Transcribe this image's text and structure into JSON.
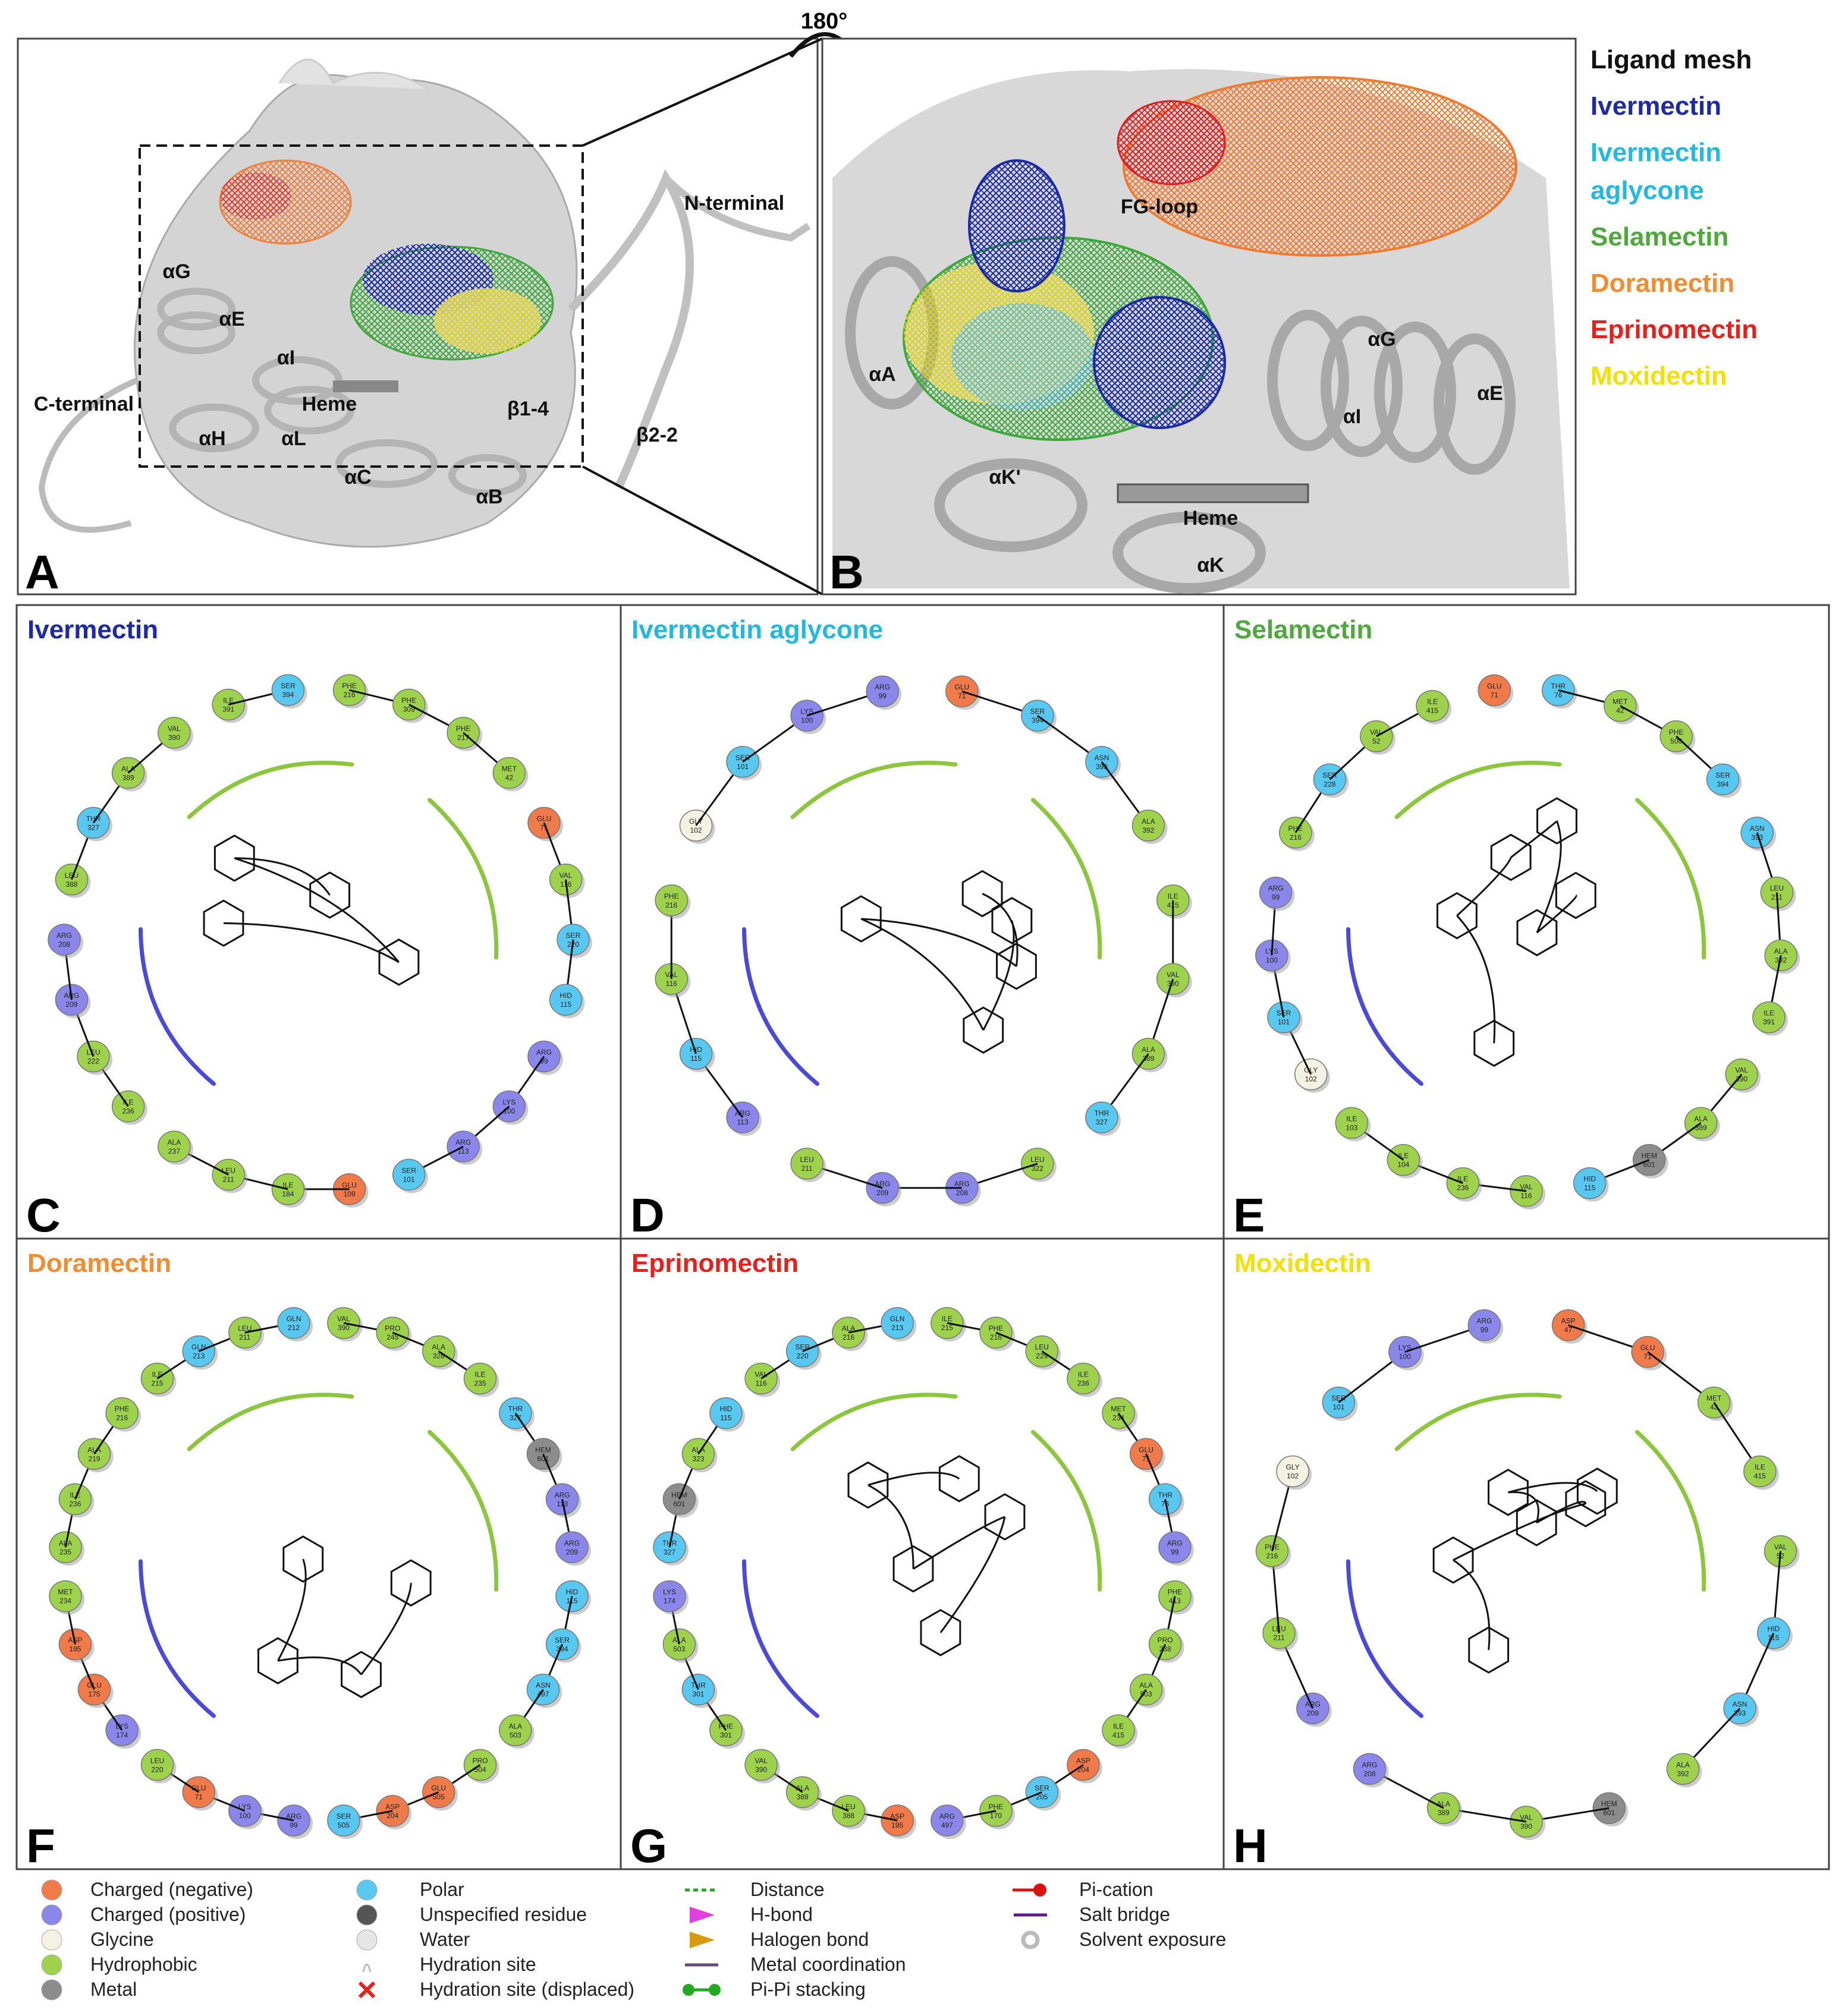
{
  "rotation_label": "180°",
  "panel_a": {
    "label": "A",
    "annotations": [
      "N-terminal",
      "αG",
      "αE",
      "αI",
      "C-terminal",
      "Heme",
      "β1-4",
      "αH",
      "αL",
      "αC",
      "αB",
      "β2-2"
    ]
  },
  "panel_b": {
    "label": "B",
    "annotations": [
      "FG-loop",
      "αA",
      "αG",
      "αE",
      "αI",
      "αK'",
      "Heme",
      "αK"
    ]
  },
  "ligand_legend": {
    "title": "Ligand mesh",
    "items": [
      {
        "name": "Ivermectin",
        "color": "#1c2aa8"
      },
      {
        "name": "Ivermectin aglycone",
        "color": "#22b8e0"
      },
      {
        "name": "Selamectin",
        "color": "#4ea83c"
      },
      {
        "name": "Doramectin",
        "color": "#f28c30"
      },
      {
        "name": "Eprinomectin",
        "color": "#e8201c"
      },
      {
        "name": "Moxidectin",
        "color": "#f2e000"
      }
    ]
  },
  "residue_colors": {
    "neg": "#f07a4a",
    "pos": "#8a86ea",
    "gly": "#f4f2e2",
    "hyd": "#9fd24c",
    "metal": "#8c8c8c",
    "polar": "#58c8f0",
    "unspec": "#555555",
    "water": "#e6e6e6"
  },
  "panels": [
    {
      "label": "C",
      "title": "Ivermectin",
      "color": "#1c2aa8",
      "residues": [
        {
          "r": "PHE",
          "n": 216,
          "k": "hyd"
        },
        {
          "r": "PHE",
          "n": 309,
          "k": "hyd"
        },
        {
          "r": "PHE",
          "n": 217,
          "k": "hyd"
        },
        {
          "r": "MET",
          "n": 42,
          "k": "hyd"
        },
        {
          "r": "GLU",
          "n": 71,
          "k": "neg"
        },
        {
          "r": "VAL",
          "n": 116,
          "k": "hyd"
        },
        {
          "r": "SER",
          "n": 220,
          "k": "polar"
        },
        {
          "r": "HID",
          "n": 115,
          "k": "polar"
        },
        {
          "r": "ARG",
          "n": 99,
          "k": "pos"
        },
        {
          "r": "LYS",
          "n": 100,
          "k": "pos"
        },
        {
          "r": "ARG",
          "n": 113,
          "k": "pos"
        },
        {
          "r": "SER",
          "n": 101,
          "k": "polar"
        },
        {
          "r": "GLU",
          "n": 109,
          "k": "neg"
        },
        {
          "r": "ILE",
          "n": 184,
          "k": "hyd"
        },
        {
          "r": "LEU",
          "n": 211,
          "k": "hyd"
        },
        {
          "r": "ALA",
          "n": 237,
          "k": "hyd"
        },
        {
          "r": "ILE",
          "n": 236,
          "k": "hyd"
        },
        {
          "r": "LEU",
          "n": 222,
          "k": "hyd"
        },
        {
          "r": "ARG",
          "n": 209,
          "k": "pos"
        },
        {
          "r": "ARG",
          "n": 208,
          "k": "pos"
        },
        {
          "r": "LEU",
          "n": 388,
          "k": "hyd"
        },
        {
          "r": "THR",
          "n": 327,
          "k": "polar"
        },
        {
          "r": "ALA",
          "n": 389,
          "k": "hyd"
        },
        {
          "r": "VAL",
          "n": 390,
          "k": "hyd"
        },
        {
          "r": "ILE",
          "n": 391,
          "k": "hyd"
        },
        {
          "r": "SER",
          "n": 394,
          "k": "polar"
        }
      ]
    },
    {
      "label": "D",
      "title": "Ivermectin aglycone",
      "color": "#22b8e0",
      "residues": [
        {
          "r": "GLU",
          "n": 71,
          "k": "neg"
        },
        {
          "r": "SER",
          "n": 394,
          "k": "polar"
        },
        {
          "r": "ASN",
          "n": 393,
          "k": "polar"
        },
        {
          "r": "ALA",
          "n": 392,
          "k": "hyd"
        },
        {
          "r": "ILE",
          "n": 415,
          "k": "hyd"
        },
        {
          "r": "VAL",
          "n": 390,
          "k": "hyd"
        },
        {
          "r": "ALA",
          "n": 389,
          "k": "hyd"
        },
        {
          "r": "THR",
          "n": 327,
          "k": "polar"
        },
        {
          "r": "LEU",
          "n": 322,
          "k": "hyd"
        },
        {
          "r": "ARG",
          "n": 208,
          "k": "pos"
        },
        {
          "r": "ARG",
          "n": 209,
          "k": "pos"
        },
        {
          "r": "LEU",
          "n": 211,
          "k": "hyd"
        },
        {
          "r": "ARG",
          "n": 113,
          "k": "pos"
        },
        {
          "r": "HID",
          "n": 115,
          "k": "polar"
        },
        {
          "r": "VAL",
          "n": 116,
          "k": "hyd"
        },
        {
          "r": "PHE",
          "n": 216,
          "k": "hyd"
        },
        {
          "r": "GLY",
          "n": 102,
          "k": "gly"
        },
        {
          "r": "SER",
          "n": 101,
          "k": "polar"
        },
        {
          "r": "LYS",
          "n": 100,
          "k": "pos"
        },
        {
          "r": "ARG",
          "n": 99,
          "k": "pos"
        }
      ]
    },
    {
      "label": "E",
      "title": "Selamectin",
      "color": "#4ea83c",
      "residues": [
        {
          "r": "THR",
          "n": 76,
          "k": "polar"
        },
        {
          "r": "MET",
          "n": 42,
          "k": "hyd"
        },
        {
          "r": "PHE",
          "n": 500,
          "k": "hyd"
        },
        {
          "r": "SER",
          "n": 394,
          "k": "polar"
        },
        {
          "r": "ASN",
          "n": 393,
          "k": "polar"
        },
        {
          "r": "LEU",
          "n": 211,
          "k": "hyd"
        },
        {
          "r": "ALA",
          "n": 392,
          "k": "hyd"
        },
        {
          "r": "ILE",
          "n": 391,
          "k": "hyd"
        },
        {
          "r": "VAL",
          "n": 390,
          "k": "hyd"
        },
        {
          "r": "ALA",
          "n": 389,
          "k": "hyd"
        },
        {
          "r": "HEM",
          "n": 601,
          "k": "metal"
        },
        {
          "r": "HID",
          "n": 115,
          "k": "polar"
        },
        {
          "r": "VAL",
          "n": 116,
          "k": "hyd"
        },
        {
          "r": "ILE",
          "n": 236,
          "k": "hyd"
        },
        {
          "r": "ILE",
          "n": 104,
          "k": "hyd"
        },
        {
          "r": "ILE",
          "n": 103,
          "k": "hyd"
        },
        {
          "r": "GLY",
          "n": 102,
          "k": "gly"
        },
        {
          "r": "SER",
          "n": 101,
          "k": "polar"
        },
        {
          "r": "LYS",
          "n": 100,
          "k": "pos"
        },
        {
          "r": "ARG",
          "n": 99,
          "k": "pos"
        },
        {
          "r": "PHE",
          "n": 216,
          "k": "hyd"
        },
        {
          "r": "SER",
          "n": 228,
          "k": "polar"
        },
        {
          "r": "VAL",
          "n": 52,
          "k": "hyd"
        },
        {
          "r": "ILE",
          "n": 415,
          "k": "hyd"
        },
        {
          "r": "GLU",
          "n": 71,
          "k": "neg"
        }
      ]
    },
    {
      "label": "F",
      "title": "Doramectin",
      "color": "#f28c30",
      "residues": [
        {
          "r": "VAL",
          "n": 390,
          "k": "hyd"
        },
        {
          "r": "PRO",
          "n": 245,
          "k": "hyd"
        },
        {
          "r": "ALA",
          "n": 328,
          "k": "hyd"
        },
        {
          "r": "ILE",
          "n": 235,
          "k": "hyd"
        },
        {
          "r": "THR",
          "n": 327,
          "k": "polar"
        },
        {
          "r": "HEM",
          "n": 601,
          "k": "metal"
        },
        {
          "r": "ARG",
          "n": 113,
          "k": "pos"
        },
        {
          "r": "ARG",
          "n": 209,
          "k": "pos"
        },
        {
          "r": "HID",
          "n": 115,
          "k": "polar"
        },
        {
          "r": "SER",
          "n": 394,
          "k": "polar"
        },
        {
          "r": "ASN",
          "n": 497,
          "k": "polar"
        },
        {
          "r": "ALA",
          "n": 503,
          "k": "hyd"
        },
        {
          "r": "PRO",
          "n": 504,
          "k": "hyd"
        },
        {
          "r": "GLU",
          "n": 505,
          "k": "neg"
        },
        {
          "r": "ASP",
          "n": 204,
          "k": "neg"
        },
        {
          "r": "SER",
          "n": 505,
          "k": "polar"
        },
        {
          "r": "ARG",
          "n": 99,
          "k": "pos"
        },
        {
          "r": "LYS",
          "n": 100,
          "k": "pos"
        },
        {
          "r": "GLU",
          "n": 71,
          "k": "neg"
        },
        {
          "r": "LEU",
          "n": 220,
          "k": "hyd"
        },
        {
          "r": "LYS",
          "n": 174,
          "k": "pos"
        },
        {
          "r": "GLU",
          "n": 175,
          "k": "neg"
        },
        {
          "r": "ASP",
          "n": 195,
          "k": "neg"
        },
        {
          "r": "MET",
          "n": 234,
          "k": "hyd"
        },
        {
          "r": "ALA",
          "n": 235,
          "k": "hyd"
        },
        {
          "r": "ILE",
          "n": 236,
          "k": "hyd"
        },
        {
          "r": "ALA",
          "n": 219,
          "k": "hyd"
        },
        {
          "r": "PHE",
          "n": 216,
          "k": "hyd"
        },
        {
          "r": "ILE",
          "n": 215,
          "k": "hyd"
        },
        {
          "r": "GLN",
          "n": 213,
          "k": "polar"
        },
        {
          "r": "LEU",
          "n": 211,
          "k": "hyd"
        },
        {
          "r": "GLN",
          "n": 212,
          "k": "polar"
        }
      ]
    },
    {
      "label": "G",
      "title": "Eprinomectin",
      "color": "#e8201c",
      "residues": [
        {
          "r": "ILE",
          "n": 215,
          "k": "hyd"
        },
        {
          "r": "PHE",
          "n": 216,
          "k": "hyd"
        },
        {
          "r": "LEU",
          "n": 229,
          "k": "hyd"
        },
        {
          "r": "ILE",
          "n": 236,
          "k": "hyd"
        },
        {
          "r": "MET",
          "n": 234,
          "k": "hyd"
        },
        {
          "r": "GLU",
          "n": 71,
          "k": "neg"
        },
        {
          "r": "THR",
          "n": 76,
          "k": "polar"
        },
        {
          "r": "ARG",
          "n": 99,
          "k": "pos"
        },
        {
          "r": "PHE",
          "n": 413,
          "k": "hyd"
        },
        {
          "r": "PRO",
          "n": 238,
          "k": "hyd"
        },
        {
          "r": "ALA",
          "n": 503,
          "k": "hyd"
        },
        {
          "r": "ILE",
          "n": 415,
          "k": "hyd"
        },
        {
          "r": "ASP",
          "n": 204,
          "k": "neg"
        },
        {
          "r": "SER",
          "n": 205,
          "k": "polar"
        },
        {
          "r": "PHE",
          "n": 170,
          "k": "hyd"
        },
        {
          "r": "ARG",
          "n": 497,
          "k": "pos"
        },
        {
          "r": "ASP",
          "n": 195,
          "k": "neg"
        },
        {
          "r": "LEU",
          "n": 388,
          "k": "hyd"
        },
        {
          "r": "ALA",
          "n": 389,
          "k": "hyd"
        },
        {
          "r": "VAL",
          "n": 390,
          "k": "hyd"
        },
        {
          "r": "PHE",
          "n": 301,
          "k": "hyd"
        },
        {
          "r": "THR",
          "n": 301,
          "k": "polar"
        },
        {
          "r": "ALA",
          "n": 503,
          "k": "hyd"
        },
        {
          "r": "LYS",
          "n": 174,
          "k": "pos"
        },
        {
          "r": "THR",
          "n": 327,
          "k": "polar"
        },
        {
          "r": "HEM",
          "n": 601,
          "k": "metal"
        },
        {
          "r": "ALA",
          "n": 323,
          "k": "hyd"
        },
        {
          "r": "HID",
          "n": 115,
          "k": "polar"
        },
        {
          "r": "VAL",
          "n": 116,
          "k": "hyd"
        },
        {
          "r": "SER",
          "n": 220,
          "k": "polar"
        },
        {
          "r": "ALA",
          "n": 216,
          "k": "hyd"
        },
        {
          "r": "GLN",
          "n": 213,
          "k": "polar"
        }
      ]
    },
    {
      "label": "H",
      "title": "Moxidectin",
      "color": "#f2e000",
      "residues": [
        {
          "r": "ASP",
          "n": 47,
          "k": "neg"
        },
        {
          "r": "GLU",
          "n": 71,
          "k": "neg"
        },
        {
          "r": "MET",
          "n": 42,
          "k": "hyd"
        },
        {
          "r": "ILE",
          "n": 415,
          "k": "hyd"
        },
        {
          "r": "VAL",
          "n": 52,
          "k": "hyd"
        },
        {
          "r": "HID",
          "n": 115,
          "k": "polar"
        },
        {
          "r": "ASN",
          "n": 393,
          "k": "polar"
        },
        {
          "r": "ALA",
          "n": 392,
          "k": "hyd"
        },
        {
          "r": "HEM",
          "n": 601,
          "k": "metal"
        },
        {
          "r": "VAL",
          "n": 390,
          "k": "hyd"
        },
        {
          "r": "ALA",
          "n": 389,
          "k": "hyd"
        },
        {
          "r": "ARG",
          "n": 208,
          "k": "pos"
        },
        {
          "r": "ARG",
          "n": 209,
          "k": "pos"
        },
        {
          "r": "LEU",
          "n": 211,
          "k": "hyd"
        },
        {
          "r": "PHE",
          "n": 216,
          "k": "hyd"
        },
        {
          "r": "GLY",
          "n": 102,
          "k": "gly"
        },
        {
          "r": "SER",
          "n": 101,
          "k": "polar"
        },
        {
          "r": "LYS",
          "n": 100,
          "k": "pos"
        },
        {
          "r": "ARG",
          "n": 99,
          "k": "pos"
        }
      ]
    }
  ],
  "interaction_legend": {
    "residue_types": [
      {
        "label": "Charged (negative)",
        "kind": "neg"
      },
      {
        "label": "Charged (positive)",
        "kind": "pos"
      },
      {
        "label": "Glycine",
        "kind": "gly"
      },
      {
        "label": "Hydrophobic",
        "kind": "hyd"
      },
      {
        "label": "Metal",
        "kind": "metal"
      },
      {
        "label": "Polar",
        "kind": "polar"
      },
      {
        "label": "Unspecified residue",
        "kind": "unspec"
      },
      {
        "label": "Water",
        "kind": "water"
      }
    ],
    "other": [
      {
        "label": "Hydration site",
        "style": "hydration",
        "color": "#bbbbbb"
      },
      {
        "label": "Hydration site (displaced)",
        "style": "cross",
        "color": "#e8201c"
      },
      {
        "label": "Distance",
        "style": "dashed",
        "color": "#22aa22"
      },
      {
        "label": "H-bond",
        "style": "arrow",
        "color": "#e040e0"
      },
      {
        "label": "Halogen bond",
        "style": "arrow",
        "color": "#d89a10"
      },
      {
        "label": "Metal coordination",
        "style": "line",
        "color": "#6a4a7a"
      },
      {
        "label": "Pi-Pi stacking",
        "style": "dots",
        "color": "#22aa22"
      },
      {
        "label": "Pi-cation",
        "style": "dot",
        "color": "#e01010"
      },
      {
        "label": "Salt bridge",
        "style": "line",
        "color": "#5a1a8a"
      },
      {
        "label": "Solvent exposure",
        "style": "halo",
        "color": "#bbbbbb"
      }
    ]
  }
}
